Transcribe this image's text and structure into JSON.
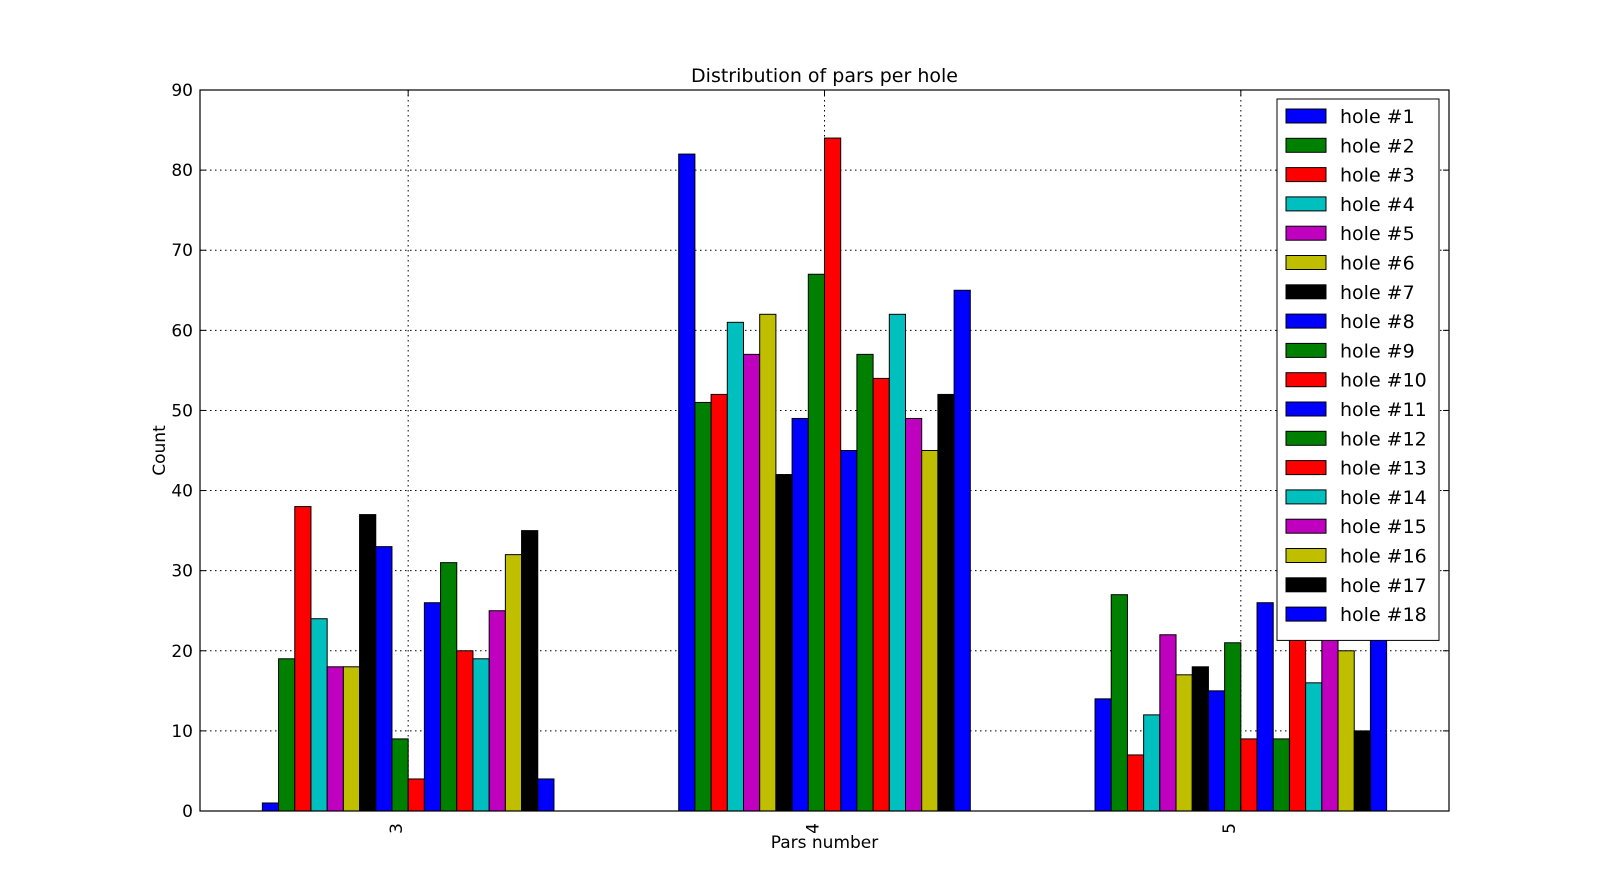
{
  "chart_data": {
    "type": "bar",
    "title": "Distribution of pars per hole",
    "xlabel": "Pars number",
    "ylabel": "Count",
    "categories": [
      "3",
      "4",
      "5"
    ],
    "ylim": [
      0,
      90
    ],
    "yticks": [
      0,
      10,
      20,
      30,
      40,
      50,
      60,
      70,
      80,
      90
    ],
    "grid": true,
    "legend_position": "top-right",
    "series": [
      {
        "name": "hole #1",
        "color": "#0000ff",
        "values": [
          1,
          82,
          14
        ]
      },
      {
        "name": "hole #2",
        "color": "#008000",
        "values": [
          19,
          51,
          27
        ]
      },
      {
        "name": "hole #3",
        "color": "#ff0000",
        "values": [
          38,
          52,
          7
        ]
      },
      {
        "name": "hole #4",
        "color": "#00bfbf",
        "values": [
          24,
          61,
          12
        ]
      },
      {
        "name": "hole #5",
        "color": "#bf00bf",
        "values": [
          18,
          57,
          22
        ]
      },
      {
        "name": "hole #6",
        "color": "#bfbf00",
        "values": [
          18,
          62,
          17
        ]
      },
      {
        "name": "hole #7",
        "color": "#000000",
        "values": [
          37,
          42,
          18
        ]
      },
      {
        "name": "hole #8",
        "color": "#0000ff",
        "values": [
          33,
          49,
          15
        ]
      },
      {
        "name": "hole #9",
        "color": "#008000",
        "values": [
          9,
          67,
          21
        ]
      },
      {
        "name": "hole #10",
        "color": "#ff0000",
        "values": [
          4,
          84,
          9
        ]
      },
      {
        "name": "hole #11",
        "color": "#0000ff",
        "values": [
          26,
          45,
          26
        ]
      },
      {
        "name": "hole #12",
        "color": "#008000",
        "values": [
          31,
          57,
          9
        ]
      },
      {
        "name": "hole #13",
        "color": "#ff0000",
        "values": [
          20,
          54,
          23
        ]
      },
      {
        "name": "hole #14",
        "color": "#00bfbf",
        "values": [
          19,
          62,
          16
        ]
      },
      {
        "name": "hole #15",
        "color": "#bf00bf",
        "values": [
          25,
          49,
          26
        ]
      },
      {
        "name": "hole #16",
        "color": "#bfbf00",
        "values": [
          32,
          45,
          20
        ]
      },
      {
        "name": "hole #17",
        "color": "#000000",
        "values": [
          35,
          52,
          10
        ]
      },
      {
        "name": "hole #18",
        "color": "#0000ff",
        "values": [
          4,
          65,
          30
        ]
      }
    ]
  }
}
